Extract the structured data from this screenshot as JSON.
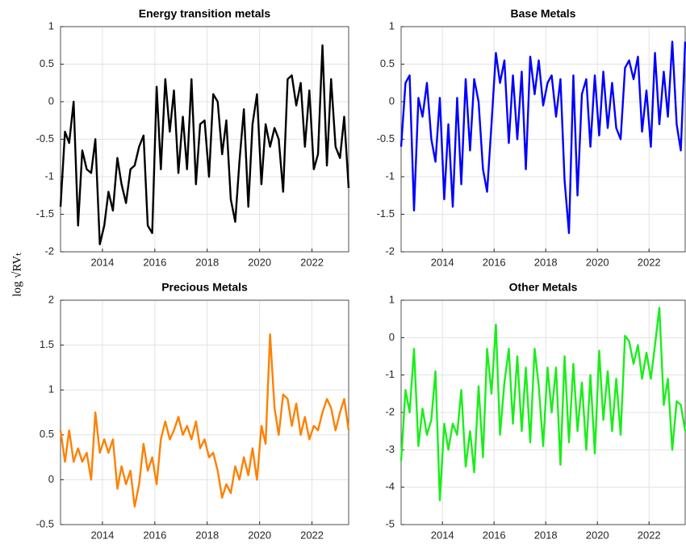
{
  "ylabel": "log √RVₜ",
  "chart_data": [
    {
      "type": "line",
      "title": "Energy transition metals",
      "color": "#000000",
      "grid": true,
      "xlim": [
        2012.4,
        2023.4
      ],
      "xticks": [
        2014,
        2016,
        2018,
        2020,
        2022
      ],
      "ylim": [
        -2,
        1
      ],
      "yticks": [
        -2,
        -1.5,
        -1,
        -0.5,
        0,
        0.5,
        1
      ],
      "x": [
        2012.4,
        2012.57,
        2012.73,
        2012.9,
        2013.07,
        2013.23,
        2013.4,
        2013.57,
        2013.73,
        2013.9,
        2014.07,
        2014.23,
        2014.4,
        2014.57,
        2014.73,
        2014.9,
        2015.07,
        2015.23,
        2015.4,
        2015.57,
        2015.73,
        2015.9,
        2016.07,
        2016.23,
        2016.4,
        2016.57,
        2016.73,
        2016.9,
        2017.07,
        2017.23,
        2017.4,
        2017.57,
        2017.73,
        2017.9,
        2018.07,
        2018.23,
        2018.4,
        2018.57,
        2018.73,
        2018.9,
        2019.07,
        2019.23,
        2019.4,
        2019.57,
        2019.73,
        2019.9,
        2020.07,
        2020.23,
        2020.4,
        2020.57,
        2020.73,
        2020.9,
        2021.07,
        2021.23,
        2021.4,
        2021.57,
        2021.73,
        2021.9,
        2022.07,
        2022.23,
        2022.4,
        2022.57,
        2022.73,
        2022.9,
        2023.07,
        2023.23,
        2023.4
      ],
      "values": [
        -1.4,
        -0.4,
        -0.55,
        0.0,
        -1.65,
        -0.65,
        -0.9,
        -0.95,
        -0.5,
        -1.9,
        -1.65,
        -1.2,
        -1.45,
        -0.75,
        -1.1,
        -1.35,
        -0.9,
        -0.85,
        -0.6,
        -0.45,
        -1.65,
        -1.75,
        0.2,
        -0.9,
        0.3,
        -0.4,
        0.15,
        -0.95,
        -0.2,
        -0.9,
        0.3,
        -1.1,
        -0.3,
        -0.25,
        -1.0,
        0.1,
        0.0,
        -0.7,
        -0.25,
        -1.3,
        -1.6,
        -0.8,
        -0.1,
        -1.4,
        -0.3,
        0.1,
        -1.1,
        -0.3,
        -0.6,
        -0.35,
        -0.5,
        -1.2,
        0.3,
        0.35,
        -0.05,
        0.25,
        -0.6,
        0.15,
        -0.9,
        -0.7,
        0.75,
        -0.85,
        0.3,
        -0.6,
        -0.75,
        -0.2,
        -1.15
      ]
    },
    {
      "type": "line",
      "title": "Base Metals",
      "color": "#0000ff",
      "grid": true,
      "xlim": [
        2012.4,
        2023.4
      ],
      "xticks": [
        2014,
        2016,
        2018,
        2020,
        2022
      ],
      "ylim": [
        -2,
        1
      ],
      "yticks": [
        -2,
        -1.5,
        -1,
        -0.5,
        0,
        0.5,
        1
      ],
      "x": [
        2012.4,
        2012.57,
        2012.73,
        2012.9,
        2013.07,
        2013.23,
        2013.4,
        2013.57,
        2013.73,
        2013.9,
        2014.07,
        2014.23,
        2014.4,
        2014.57,
        2014.73,
        2014.9,
        2015.07,
        2015.23,
        2015.4,
        2015.57,
        2015.73,
        2015.9,
        2016.07,
        2016.23,
        2016.4,
        2016.57,
        2016.73,
        2016.9,
        2017.07,
        2017.23,
        2017.4,
        2017.57,
        2017.73,
        2017.9,
        2018.07,
        2018.23,
        2018.4,
        2018.57,
        2018.73,
        2018.9,
        2019.07,
        2019.23,
        2019.4,
        2019.57,
        2019.73,
        2019.9,
        2020.07,
        2020.23,
        2020.4,
        2020.57,
        2020.73,
        2020.9,
        2021.07,
        2021.23,
        2021.4,
        2021.57,
        2021.73,
        2021.9,
        2022.07,
        2022.23,
        2022.4,
        2022.57,
        2022.73,
        2022.9,
        2023.07,
        2023.23,
        2023.4
      ],
      "values": [
        -0.6,
        0.25,
        0.35,
        -1.45,
        0.05,
        -0.2,
        0.25,
        -0.5,
        -0.8,
        0.05,
        -1.3,
        -0.3,
        -1.4,
        0.05,
        -1.1,
        0.3,
        -0.65,
        0.3,
        0.0,
        -0.9,
        -1.2,
        -0.3,
        0.65,
        0.25,
        0.55,
        -0.55,
        0.35,
        -0.5,
        0.4,
        -0.9,
        0.6,
        0.1,
        0.55,
        -0.05,
        0.25,
        0.35,
        -0.2,
        0.3,
        -1.05,
        -1.75,
        0.35,
        -1.25,
        0.1,
        0.3,
        -0.6,
        0.35,
        -0.45,
        0.4,
        -0.35,
        0.25,
        -0.35,
        -0.5,
        0.45,
        0.55,
        0.3,
        0.6,
        -0.4,
        0.15,
        -0.6,
        0.65,
        -0.3,
        0.4,
        -0.2,
        0.8,
        -0.3,
        -0.65,
        0.8
      ]
    },
    {
      "type": "line",
      "title": "Precious Metals",
      "color": "#ff8000",
      "grid": true,
      "xlim": [
        2012.4,
        2023.4
      ],
      "xticks": [
        2014,
        2016,
        2018,
        2020,
        2022
      ],
      "ylim": [
        -0.5,
        2
      ],
      "yticks": [
        -0.5,
        0,
        0.5,
        1,
        1.5,
        2
      ],
      "x": [
        2012.4,
        2012.57,
        2012.73,
        2012.9,
        2013.07,
        2013.23,
        2013.4,
        2013.57,
        2013.73,
        2013.9,
        2014.07,
        2014.23,
        2014.4,
        2014.57,
        2014.73,
        2014.9,
        2015.07,
        2015.23,
        2015.4,
        2015.57,
        2015.73,
        2015.9,
        2016.07,
        2016.23,
        2016.4,
        2016.57,
        2016.73,
        2016.9,
        2017.07,
        2017.23,
        2017.4,
        2017.57,
        2017.73,
        2017.9,
        2018.07,
        2018.23,
        2018.4,
        2018.57,
        2018.73,
        2018.9,
        2019.07,
        2019.23,
        2019.4,
        2019.57,
        2019.73,
        2019.9,
        2020.07,
        2020.23,
        2020.4,
        2020.57,
        2020.73,
        2020.9,
        2021.07,
        2021.23,
        2021.4,
        2021.57,
        2021.73,
        2021.9,
        2022.07,
        2022.23,
        2022.4,
        2022.57,
        2022.73,
        2022.9,
        2023.07,
        2023.23,
        2023.4
      ],
      "values": [
        0.55,
        0.2,
        0.55,
        0.2,
        0.35,
        0.2,
        0.3,
        0.0,
        0.75,
        0.3,
        0.45,
        0.3,
        0.45,
        -0.1,
        0.15,
        -0.05,
        0.1,
        -0.3,
        -0.05,
        0.4,
        0.1,
        0.25,
        -0.05,
        0.45,
        0.65,
        0.45,
        0.55,
        0.7,
        0.5,
        0.6,
        0.45,
        0.65,
        0.35,
        0.45,
        0.25,
        0.3,
        0.1,
        -0.2,
        -0.05,
        -0.15,
        0.15,
        0.0,
        0.25,
        0.05,
        0.35,
        0.0,
        0.6,
        0.4,
        1.62,
        0.8,
        0.5,
        0.95,
        0.9,
        0.6,
        0.85,
        0.5,
        0.7,
        0.45,
        0.6,
        0.55,
        0.75,
        0.9,
        0.8,
        0.55,
        0.75,
        0.9,
        0.55
      ]
    },
    {
      "type": "line",
      "title": "Other Metals",
      "color": "#1aee1a",
      "grid": true,
      "xlim": [
        2012.4,
        2023.4
      ],
      "xticks": [
        2014,
        2016,
        2018,
        2020,
        2022
      ],
      "ylim": [
        -5,
        1
      ],
      "yticks": [
        -5,
        -4,
        -3,
        -2,
        -1,
        0,
        1
      ],
      "x": [
        2012.4,
        2012.57,
        2012.73,
        2012.9,
        2013.07,
        2013.23,
        2013.4,
        2013.57,
        2013.73,
        2013.9,
        2014.07,
        2014.23,
        2014.4,
        2014.57,
        2014.73,
        2014.9,
        2015.07,
        2015.23,
        2015.4,
        2015.57,
        2015.73,
        2015.9,
        2016.07,
        2016.23,
        2016.4,
        2016.57,
        2016.73,
        2016.9,
        2017.07,
        2017.23,
        2017.4,
        2017.57,
        2017.73,
        2017.9,
        2018.07,
        2018.23,
        2018.4,
        2018.57,
        2018.73,
        2018.9,
        2019.07,
        2019.23,
        2019.4,
        2019.57,
        2019.73,
        2019.9,
        2020.07,
        2020.23,
        2020.4,
        2020.57,
        2020.73,
        2020.9,
        2021.07,
        2021.23,
        2021.4,
        2021.57,
        2021.73,
        2021.9,
        2022.07,
        2022.23,
        2022.4,
        2022.57,
        2022.73,
        2022.9,
        2023.07,
        2023.23,
        2023.4
      ],
      "values": [
        -3.3,
        -1.4,
        -2.0,
        -0.3,
        -2.9,
        -1.9,
        -2.6,
        -2.2,
        -0.9,
        -4.35,
        -2.3,
        -3.0,
        -2.3,
        -2.6,
        -1.4,
        -3.45,
        -2.5,
        -3.6,
        -1.3,
        -3.2,
        -0.3,
        -1.5,
        0.35,
        -2.6,
        -1.2,
        -0.3,
        -2.3,
        -0.5,
        -2.5,
        -0.8,
        -2.8,
        -0.3,
        -1.3,
        -2.9,
        -0.8,
        -2.0,
        -0.8,
        -3.4,
        -0.5,
        -2.8,
        -0.7,
        -2.5,
        -1.2,
        -3.0,
        -1.0,
        -3.1,
        -0.35,
        -2.2,
        -0.9,
        -2.5,
        -1.1,
        -2.6,
        0.05,
        -0.1,
        -0.7,
        -0.2,
        -1.1,
        -0.4,
        -1.1,
        -0.2,
        0.8,
        -1.8,
        -1.1,
        -3.0,
        -1.7,
        -1.8,
        -2.5
      ]
    }
  ]
}
